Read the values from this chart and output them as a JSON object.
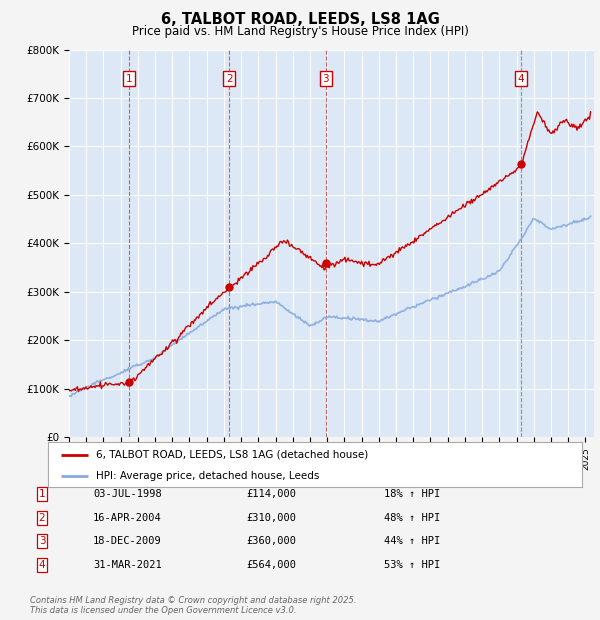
{
  "title": "6, TALBOT ROAD, LEEDS, LS8 1AG",
  "subtitle": "Price paid vs. HM Land Registry's House Price Index (HPI)",
  "ylim": [
    0,
    800000
  ],
  "yticks": [
    0,
    100000,
    200000,
    300000,
    400000,
    500000,
    600000,
    700000,
    800000
  ],
  "ytick_labels": [
    "£0",
    "£100K",
    "£200K",
    "£300K",
    "£400K",
    "£500K",
    "£600K",
    "£700K",
    "£800K"
  ],
  "bg_color": "#dce8f5",
  "fig_bg": "#f5f5f5",
  "sale_color": "#cc0000",
  "hpi_color": "#88aadd",
  "transactions": [
    {
      "num": 1,
      "year": 1998.5,
      "price": 114000
    },
    {
      "num": 2,
      "year": 2004.3,
      "price": 310000
    },
    {
      "num": 3,
      "year": 2009.92,
      "price": 360000
    },
    {
      "num": 4,
      "year": 2021.25,
      "price": 564000
    }
  ],
  "legend_label_sale": "6, TALBOT ROAD, LEEDS, LS8 1AG (detached house)",
  "legend_label_hpi": "HPI: Average price, detached house, Leeds",
  "footer": "Contains HM Land Registry data © Crown copyright and database right 2025.\nThis data is licensed under the Open Government Licence v3.0.",
  "table_rows": [
    [
      "1",
      "03-JUL-1998",
      "£114,000",
      "18% ↑ HPI"
    ],
    [
      "2",
      "16-APR-2004",
      "£310,000",
      "48% ↑ HPI"
    ],
    [
      "3",
      "18-DEC-2009",
      "£360,000",
      "44% ↑ HPI"
    ],
    [
      "4",
      "31-MAR-2021",
      "£564,000",
      "53% ↑ HPI"
    ]
  ]
}
